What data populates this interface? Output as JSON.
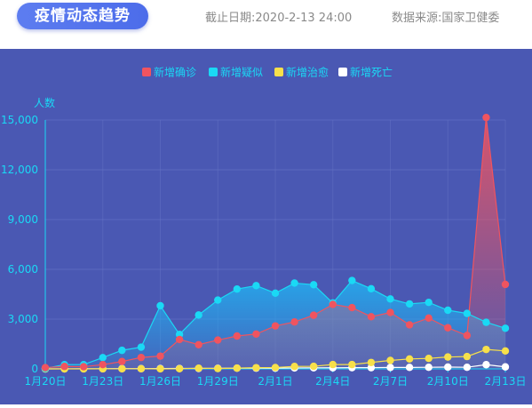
{
  "header": {
    "title": "疫情动态趋势",
    "date_label": "截止日期:",
    "date_value": "2020-2-13 24:00",
    "source_label": "数据来源:",
    "source_value": "国家卫健委"
  },
  "chart_data": {
    "type": "line",
    "ylabel": "人数",
    "ylim": [
      0,
      15000
    ],
    "yticks": [
      0,
      3000,
      6000,
      9000,
      12000,
      15000
    ],
    "ytick_labels": [
      "0",
      "3,000",
      "6,000",
      "9,000",
      "12,000",
      "15,000"
    ],
    "categories": [
      "1月20日",
      "1月21日",
      "1月22日",
      "1月23日",
      "1月24日",
      "1月25日",
      "1月26日",
      "1月27日",
      "1月28日",
      "1月29日",
      "1月30日",
      "1月31日",
      "2月1日",
      "2月2日",
      "2月3日",
      "2月4日",
      "2月5日",
      "2月6日",
      "2月7日",
      "2月8日",
      "2月9日",
      "2月10日",
      "2月11日",
      "2月12日",
      "2月13日"
    ],
    "xtick_labels": [
      "1月20日",
      "1月23日",
      "1月26日",
      "1月29日",
      "2月1日",
      "2月4日",
      "2月7日",
      "2月10日",
      "2月13日"
    ],
    "xtick_indices": [
      0,
      3,
      6,
      9,
      12,
      15,
      18,
      21,
      24
    ],
    "grid": true,
    "legend_position": "top-center",
    "series": [
      {
        "name": "新增确诊",
        "color": "#f0545f",
        "fill": true,
        "values": [
          77,
          149,
          131,
          259,
          444,
          688,
          769,
          1771,
          1459,
          1737,
          1982,
          2102,
          2590,
          2829,
          3235,
          3887,
          3694,
          3143,
          3399,
          2656,
          3062,
          2478,
          2015,
          15152,
          5090
        ]
      },
      {
        "name": "新增疑似",
        "color": "#1ad9f5",
        "fill": true,
        "values": [
          27,
          257,
          257,
          680,
          1118,
          1309,
          3806,
          2077,
          3248,
          4148,
          4812,
          5019,
          4562,
          5173,
          5072,
          3971,
          5328,
          4833,
          4214,
          3916,
          4008,
          3536,
          3342,
          2807,
          2450
        ]
      },
      {
        "name": "新增治愈",
        "color": "#f7e04a",
        "fill": false,
        "values": [
          0,
          0,
          0,
          6,
          3,
          11,
          2,
          9,
          43,
          21,
          47,
          72,
          85,
          147,
          157,
          262,
          261,
          387,
          510,
          600,
          632,
          716,
          744,
          1171,
          1081
        ]
      },
      {
        "name": "新增死亡",
        "color": "#ffffff",
        "fill": false,
        "values": [
          0,
          3,
          8,
          8,
          16,
          15,
          24,
          26,
          26,
          38,
          43,
          46,
          45,
          57,
          64,
          65,
          73,
          73,
          86,
          89,
          97,
          108,
          97,
          254,
          121
        ]
      }
    ]
  }
}
